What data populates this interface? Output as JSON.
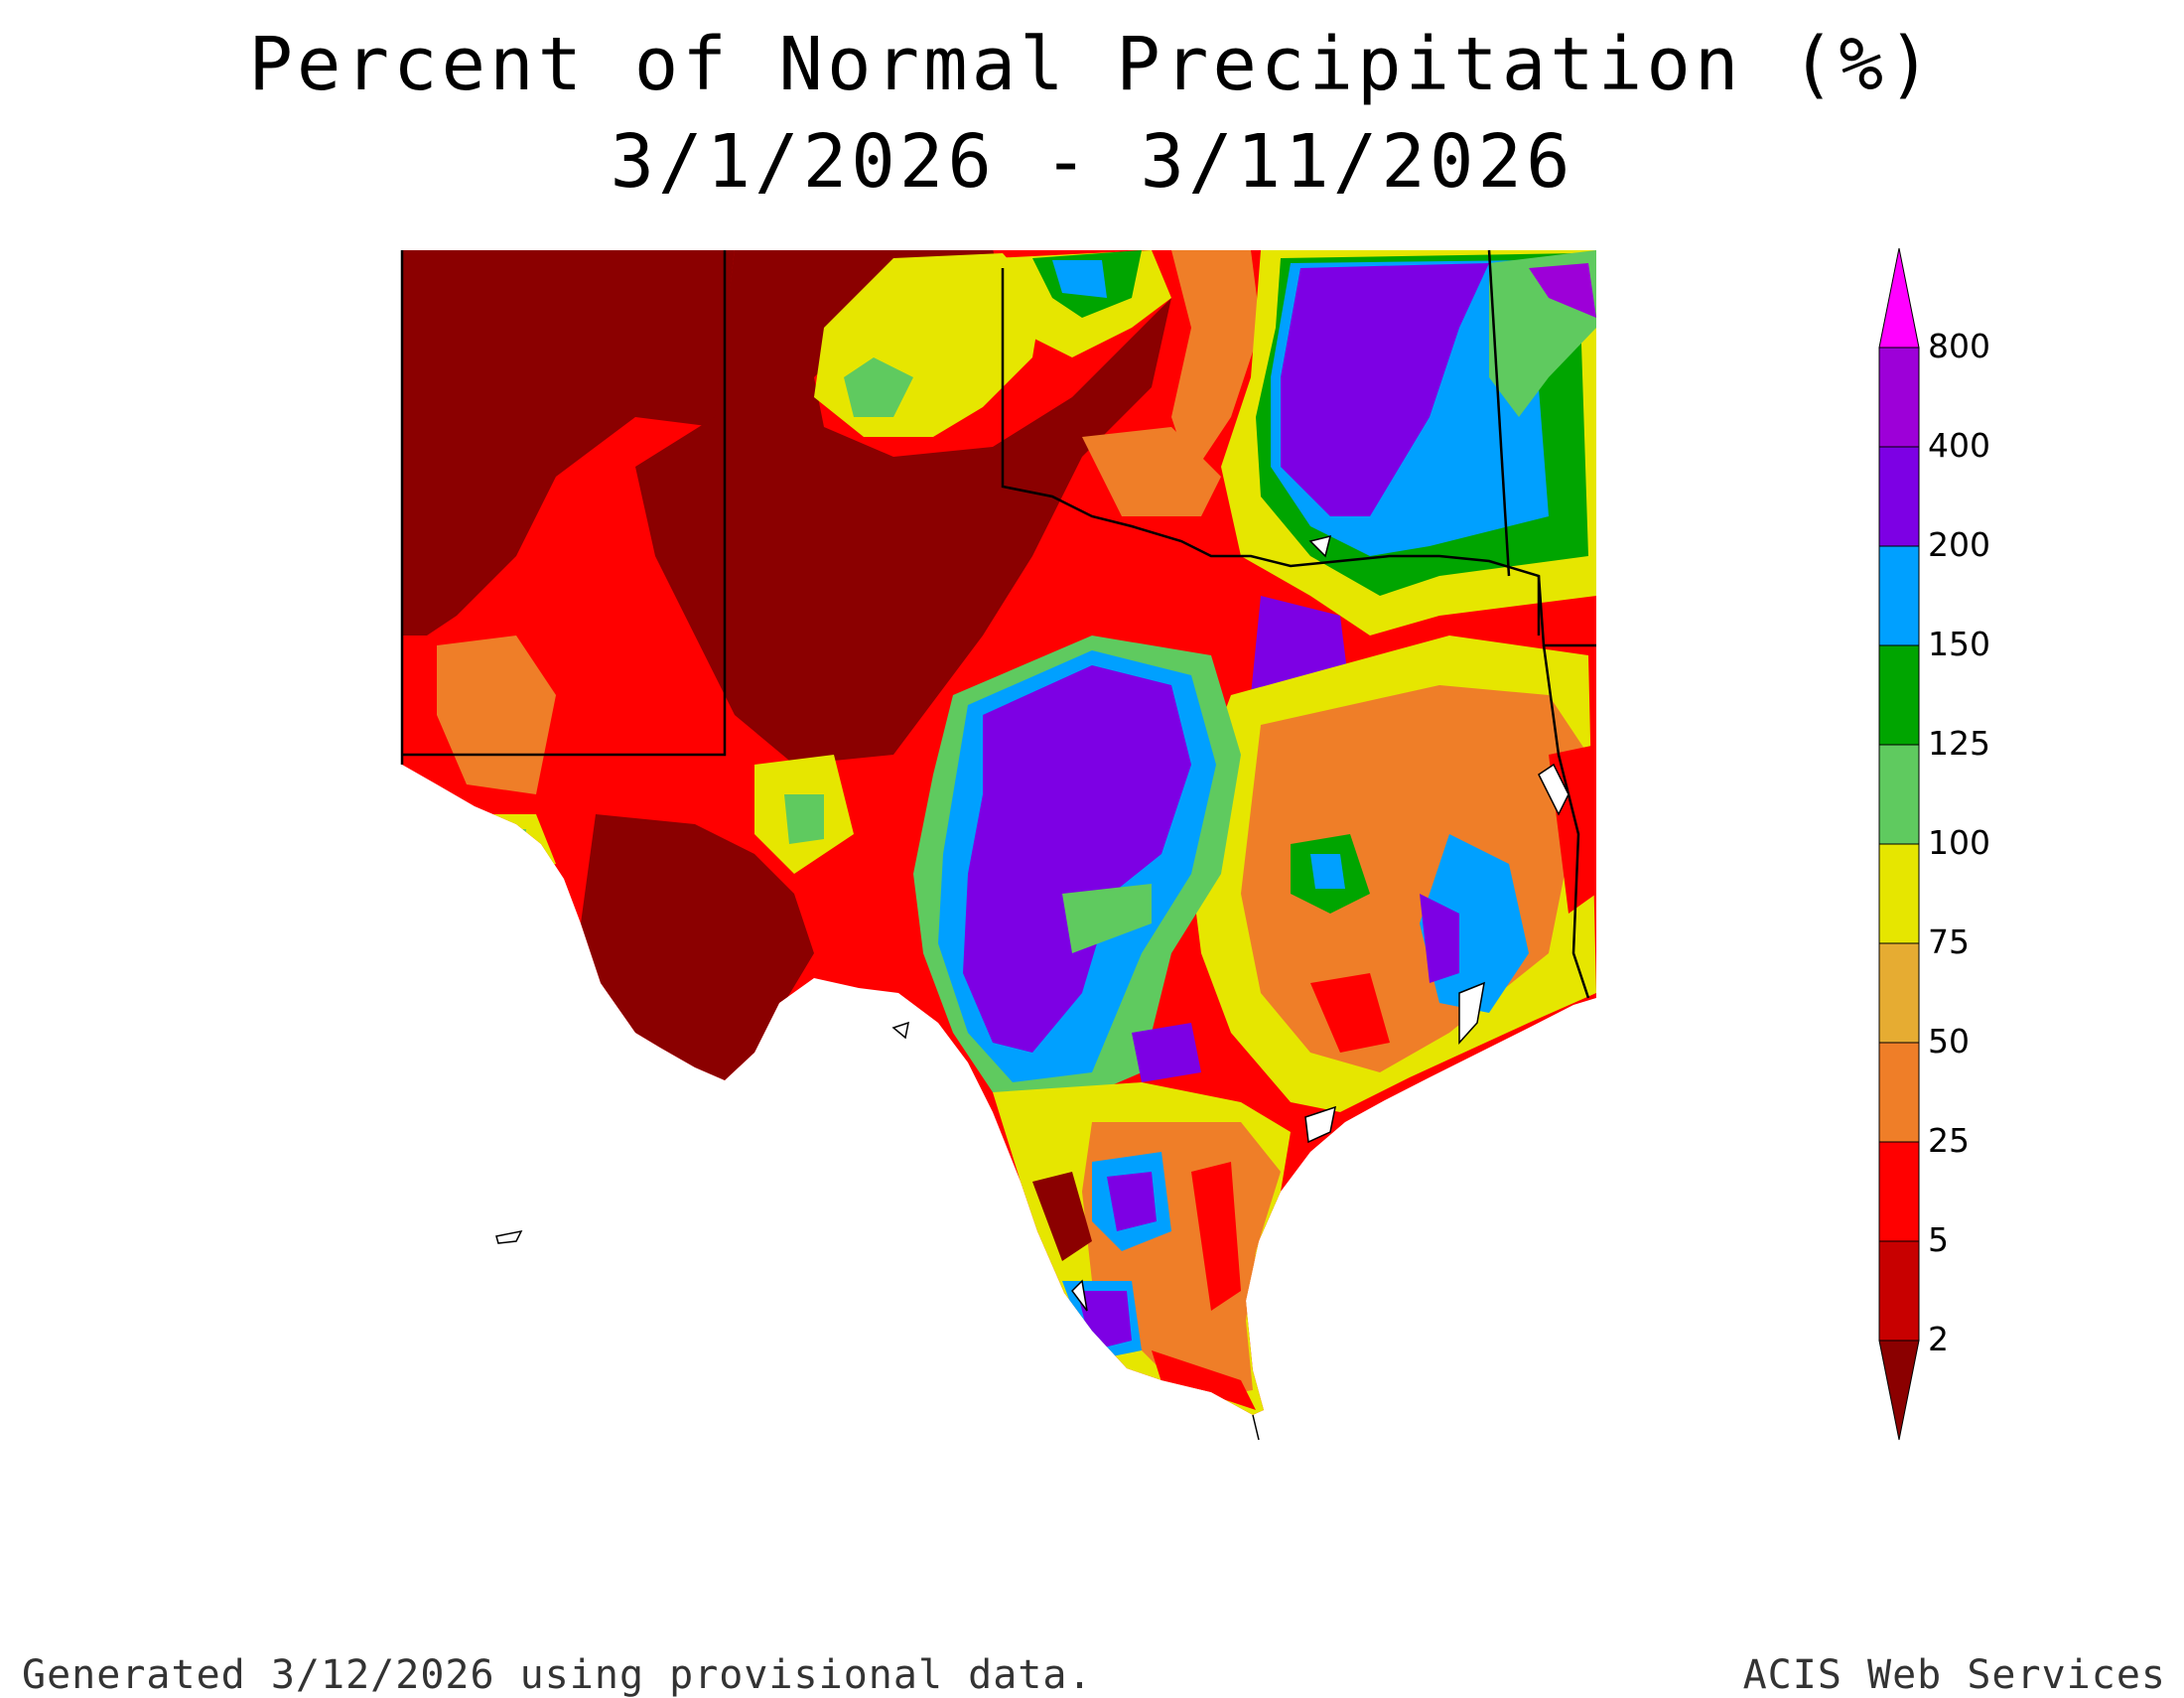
{
  "title": {
    "line1": "Percent of Normal Precipitation (%)",
    "line2": "3/1/2026 - 3/11/2026"
  },
  "legend": {
    "levels": [
      {
        "label": "800",
        "color": "#ff00ff"
      },
      {
        "label": "400",
        "color": "#9d00d8"
      },
      {
        "label": "200",
        "color": "#7d00e4"
      },
      {
        "label": "150",
        "color": "#00a0ff"
      },
      {
        "label": "125",
        "color": "#00a500"
      },
      {
        "label": "100",
        "color": "#5fca5f"
      },
      {
        "label": "75",
        "color": "#e6e600"
      },
      {
        "label": "50",
        "color": "#e6ac32"
      },
      {
        "label": "25",
        "color": "#ef7e28"
      },
      {
        "label": "5",
        "color": "#ff0000"
      },
      {
        "label": "2",
        "color": "#c80000"
      }
    ],
    "bottom_color": "#8b0000"
  },
  "map_colors": {
    "very_dry": "#8b0000",
    "dry": "#ff0000",
    "below": "#ef7e28",
    "near": "#e6ac32",
    "normal": "#e6e600",
    "above": "#5fca5f",
    "wet": "#00a500",
    "very_wet": "#00a0ff",
    "extreme": "#7d00e4",
    "extreme_high": "#9d00d8",
    "water": "#ffffff",
    "boundary": "#000000"
  },
  "footer": {
    "left": "Generated 3/12/2026  using provisional data.",
    "right": "ACIS Web Services"
  }
}
